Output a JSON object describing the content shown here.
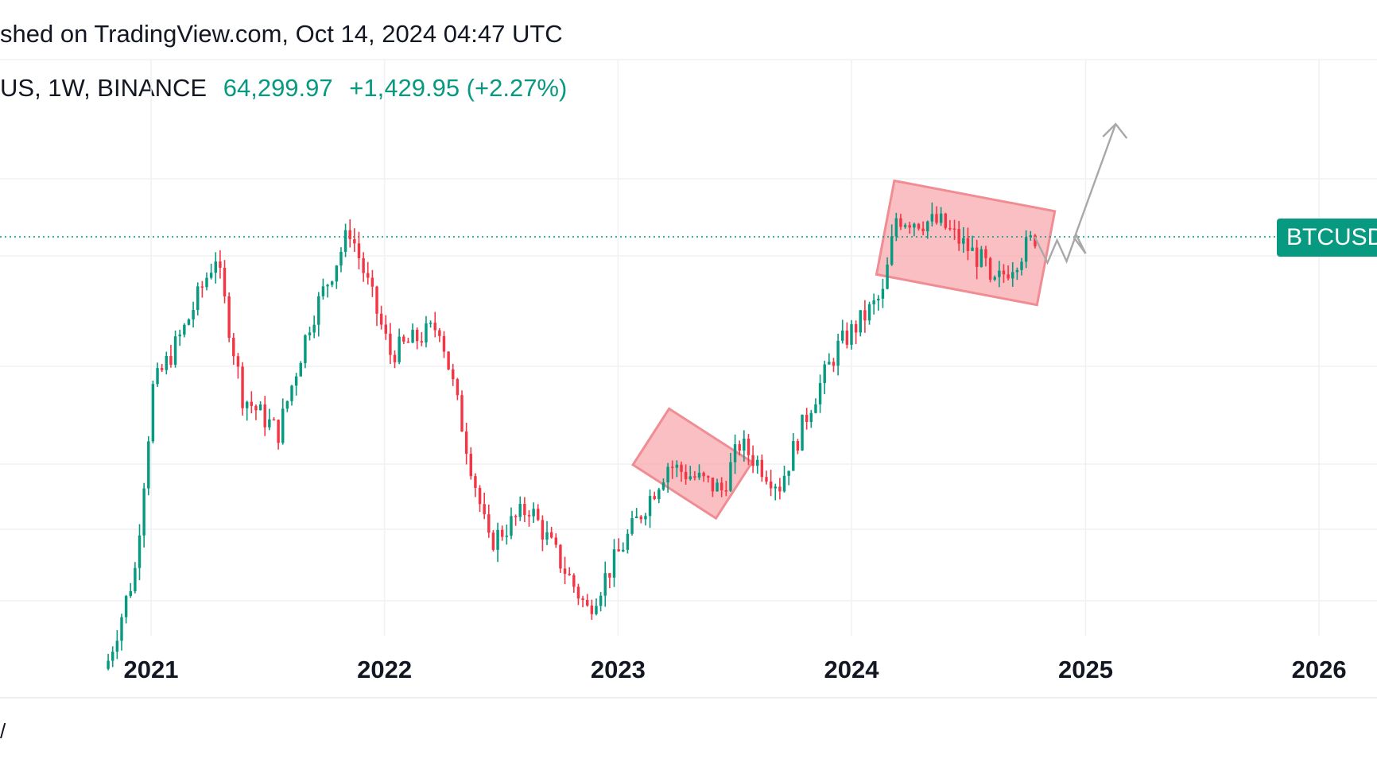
{
  "header": {
    "published_text": "shed on TradingView.com, Oct 14, 2024 04:47 UTC"
  },
  "legend": {
    "symbol_text": "US, 1W, BINANCE",
    "last_price": "64,299.97",
    "change": "+1,429.95 (+2.27%)"
  },
  "price_badge": {
    "text": "BTCUSD",
    "color": "#089981"
  },
  "footer": {
    "mark_text": "/"
  },
  "colors": {
    "up": "#089981",
    "down": "#F23645",
    "pattern_fill": "#F7A9AE",
    "pattern_stroke": "#F08C93",
    "projection": "#A8A8A8",
    "grid": "#EFF1F4",
    "price_line": "#089981"
  },
  "chart_data": {
    "type": "candlestick",
    "timeframe": "1W",
    "x_labels": [
      "2021",
      "2022",
      "2023",
      "2024",
      "2025",
      "2026"
    ],
    "current_price": 64299.97,
    "close_path": [
      {
        "date": "2020-10-26",
        "price": 13700
      },
      {
        "date": "2020-12-07",
        "price": 19100
      },
      {
        "date": "2021-01-04",
        "price": 37000
      },
      {
        "date": "2021-02-22",
        "price": 46000
      },
      {
        "date": "2021-04-12",
        "price": 60000
      },
      {
        "date": "2021-05-24",
        "price": 36000
      },
      {
        "date": "2021-07-19",
        "price": 31500
      },
      {
        "date": "2021-09-06",
        "price": 47000
      },
      {
        "date": "2021-11-08",
        "price": 66000
      },
      {
        "date": "2022-01-10",
        "price": 42000
      },
      {
        "date": "2022-03-28",
        "price": 46500
      },
      {
        "date": "2022-06-13",
        "price": 21000
      },
      {
        "date": "2022-08-15",
        "price": 24000
      },
      {
        "date": "2022-11-14",
        "price": 16500
      },
      {
        "date": "2023-01-16",
        "price": 21500
      },
      {
        "date": "2023-03-20",
        "price": 28000
      },
      {
        "date": "2023-06-12",
        "price": 25500
      },
      {
        "date": "2023-07-10",
        "price": 30200
      },
      {
        "date": "2023-09-11",
        "price": 26000
      },
      {
        "date": "2023-10-30",
        "price": 35000
      },
      {
        "date": "2023-12-11",
        "price": 43000
      },
      {
        "date": "2024-02-19",
        "price": 52000
      },
      {
        "date": "2024-03-11",
        "price": 69000
      },
      {
        "date": "2024-05-20",
        "price": 67500
      },
      {
        "date": "2024-07-29",
        "price": 58000
      },
      {
        "date": "2024-08-05",
        "price": 53000
      },
      {
        "date": "2024-09-30",
        "price": 62000
      },
      {
        "date": "2024-10-14",
        "price": 64300
      }
    ],
    "patterns": [
      {
        "type": "descending channel",
        "from": "2023-03-06",
        "to": "2023-06-19"
      },
      {
        "type": "descending channel",
        "from": "2024-03-04",
        "to": "2024-10-21"
      }
    ],
    "projection": {
      "direction": "up",
      "from": "2024-10-21",
      "to": "2025-02-17"
    }
  }
}
